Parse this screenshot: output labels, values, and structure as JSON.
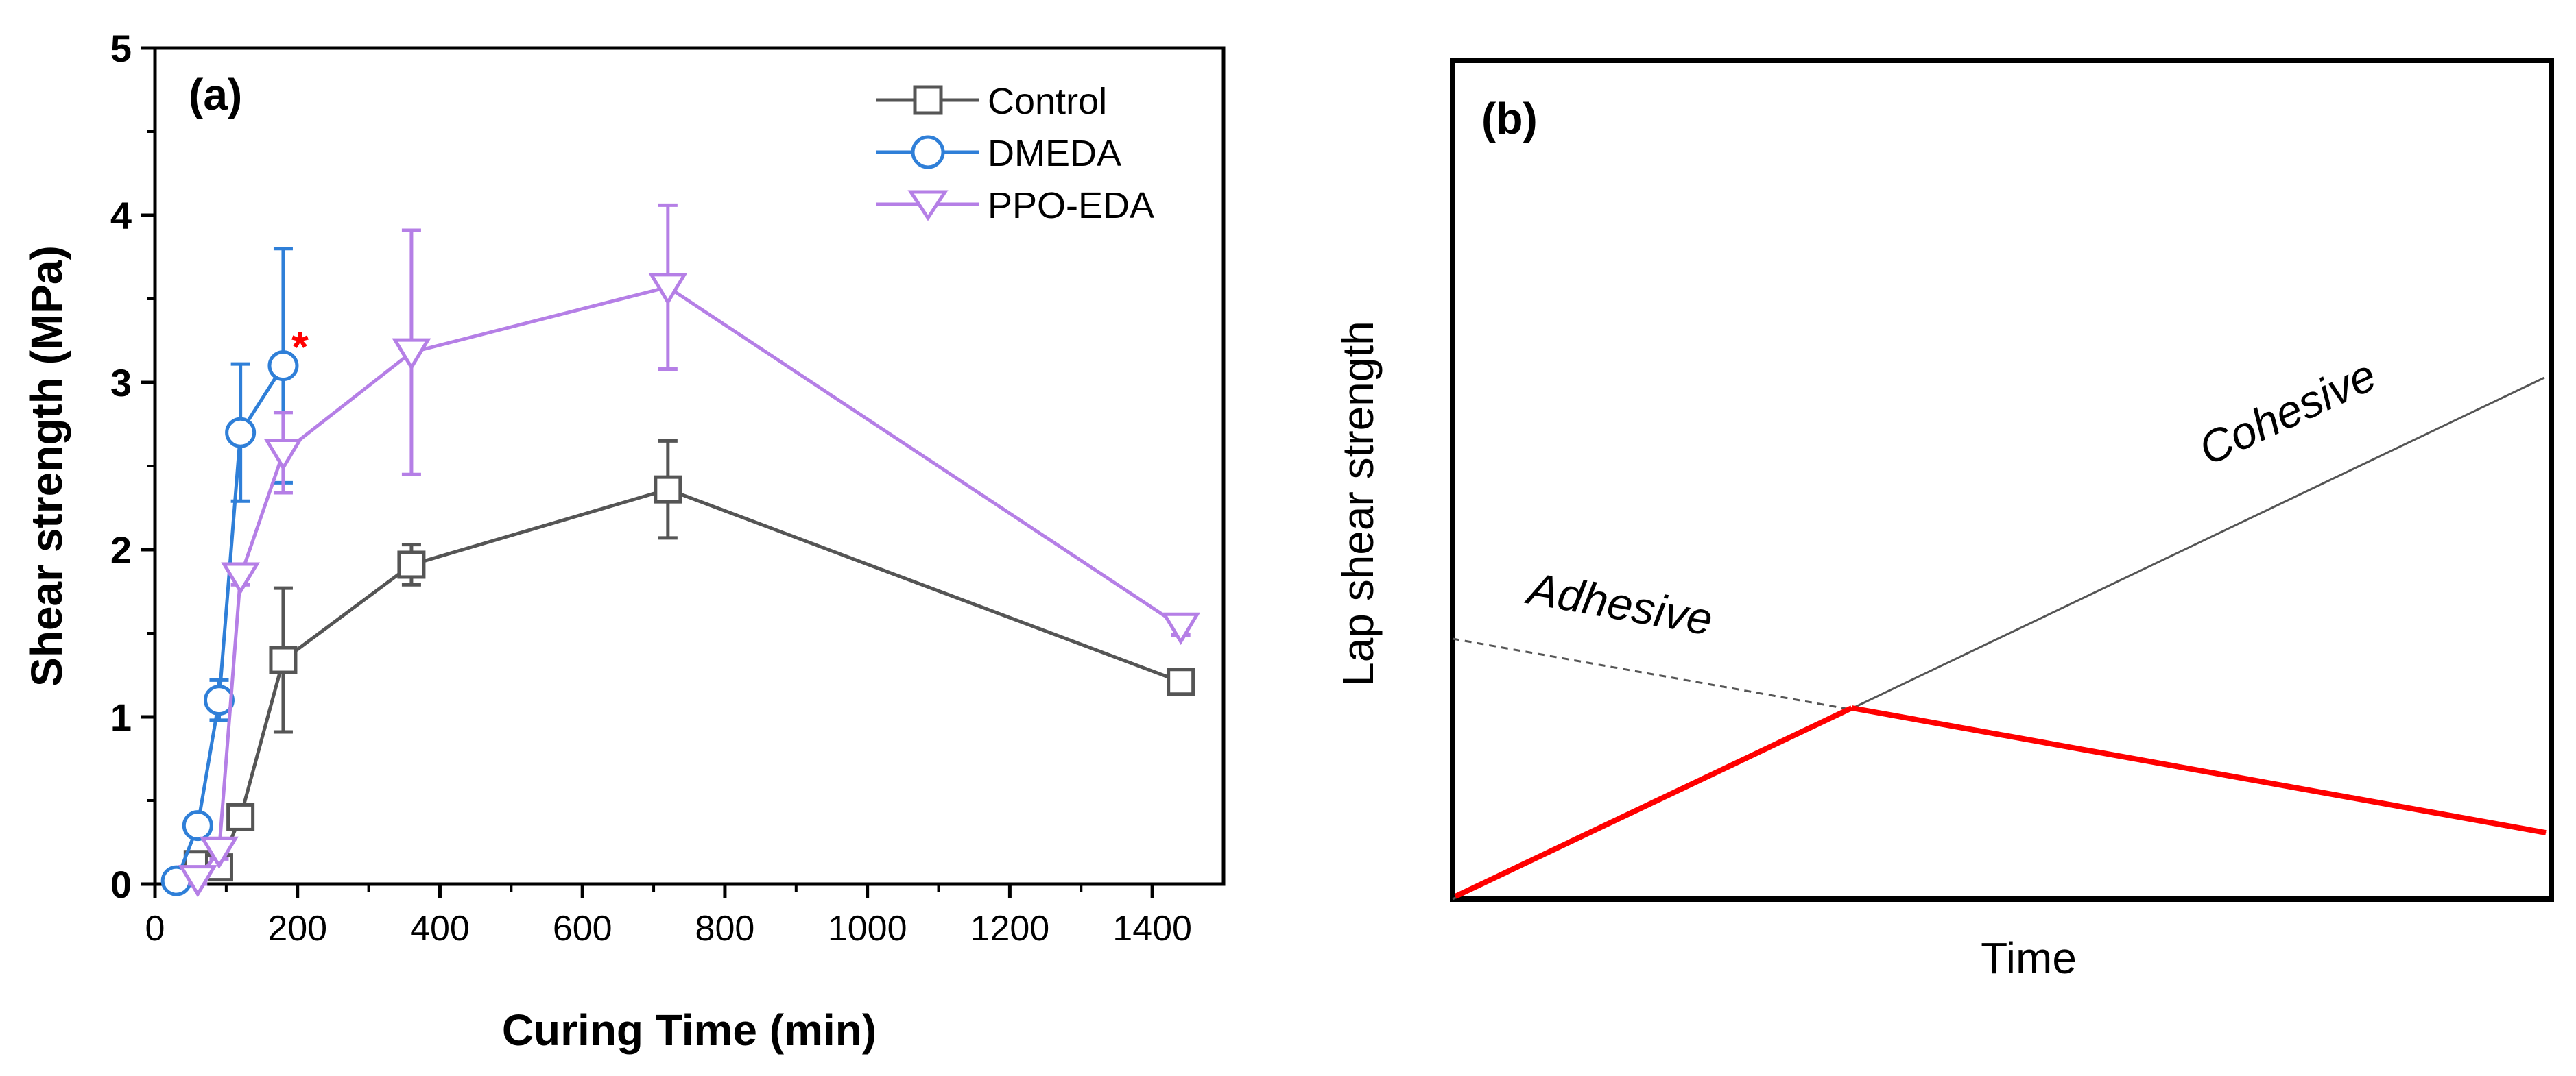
{
  "chart_data": [
    {
      "panel_label": "(a)",
      "type": "line",
      "xlabel": "Curing Time (min)",
      "ylabel": "Shear strength (MPa)",
      "xlim": [
        0,
        1500
      ],
      "ylim": [
        0,
        5
      ],
      "xticks": [
        0,
        200,
        400,
        600,
        800,
        1000,
        1200,
        1400
      ],
      "yticks": [
        0,
        1,
        2,
        3,
        4,
        5
      ],
      "legend_position": "top-right",
      "annotation": "*",
      "series": [
        {
          "name": "Control",
          "color": "#555555",
          "marker": "square",
          "x": [
            60,
            90,
            120,
            180,
            360,
            720,
            1440
          ],
          "y": [
            0.12,
            0.1,
            0.4,
            1.34,
            1.91,
            2.36,
            1.21
          ],
          "err": [
            0.04,
            0.05,
            0.05,
            0.43,
            0.12,
            0.29,
            0.05
          ]
        },
        {
          "name": "DMEDA",
          "color": "#2f7fd8",
          "marker": "circle",
          "x": [
            30,
            60,
            90,
            120,
            180
          ],
          "y": [
            0.02,
            0.35,
            1.1,
            2.7,
            3.1
          ],
          "err": [
            0.02,
            0.05,
            0.12,
            0.41,
            0.7
          ]
        },
        {
          "name": "PPO-EDA",
          "color": "#b57fe6",
          "marker": "triangle-down",
          "x": [
            60,
            90,
            120,
            180,
            360,
            720,
            1440
          ],
          "y": [
            0.03,
            0.2,
            1.84,
            2.58,
            3.18,
            3.57,
            1.54
          ],
          "err": [
            0.03,
            0.05,
            0.05,
            0.24,
            0.73,
            0.49,
            0.05
          ]
        }
      ]
    },
    {
      "panel_label": "(b)",
      "type": "line",
      "xlabel": "Time",
      "ylabel": "Lap shear strength",
      "axis_ticks": false,
      "series": [
        {
          "name": "Adhesive",
          "style": "dashed",
          "color": "#555555",
          "x": [
            0,
            0.37,
            1.0
          ],
          "y": [
            0.5,
            0.35,
            0.1
          ]
        },
        {
          "name": "Cohesive",
          "style": "solid",
          "color": "#555555",
          "x": [
            0,
            0.37,
            1.0
          ],
          "y": [
            0.0,
            0.35,
            1.0
          ]
        },
        {
          "name": "failure path",
          "style": "arrow",
          "color": "#ff0000",
          "x": [
            0,
            0.37,
            1.0
          ],
          "y": [
            0.0,
            0.35,
            0.1
          ]
        }
      ]
    }
  ]
}
